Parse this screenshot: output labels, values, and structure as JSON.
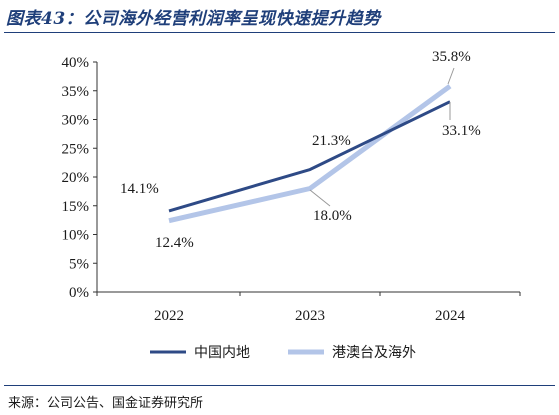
{
  "title": "图表43：公司海外经营利润率呈现快速提升趋势",
  "source": "来源：公司公告、国金证券研究所",
  "colors": {
    "title": "#1f3f7a",
    "series1": "#2e4a86",
    "series2": "#b3c5e8",
    "axis": "#333333"
  },
  "chart_data": {
    "type": "line",
    "categories": [
      "2022",
      "2023",
      "2024"
    ],
    "y_ticks": [
      "0%",
      "5%",
      "10%",
      "15%",
      "20%",
      "25%",
      "30%",
      "35%",
      "40%"
    ],
    "ylim": [
      0,
      40
    ],
    "grid": false,
    "legend_position": "bottom",
    "series": [
      {
        "name": "中国内地",
        "values": [
          14.1,
          21.3,
          33.1
        ],
        "labels": [
          "14.1%",
          "21.3%",
          "33.1%"
        ]
      },
      {
        "name": "港澳台及海外",
        "values": [
          12.4,
          18.0,
          35.8
        ],
        "labels": [
          "12.4%",
          "18.0%",
          "35.8%"
        ]
      }
    ]
  }
}
